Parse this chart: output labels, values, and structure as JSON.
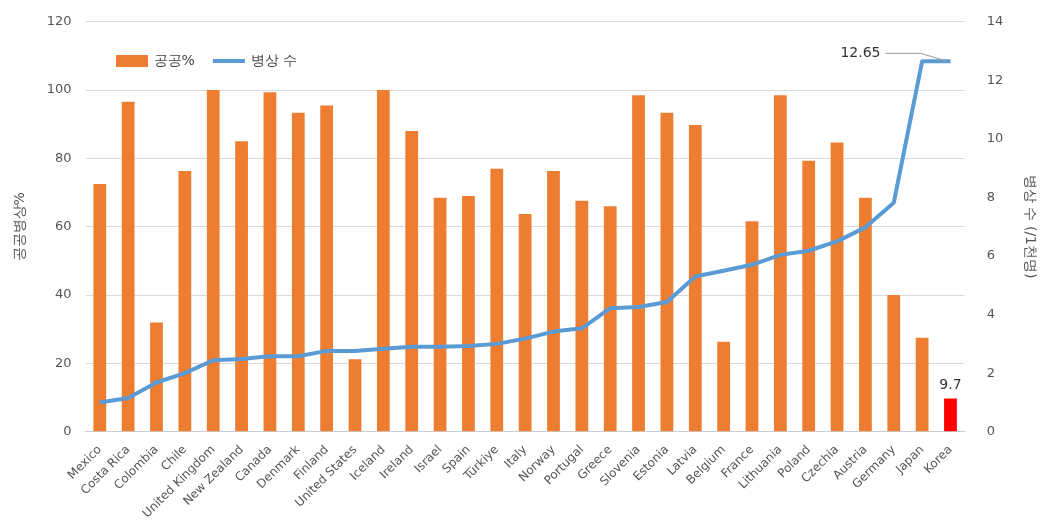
{
  "chart_data": {
    "type": "bar",
    "ylabel": "공공병상%",
    "y2label": "병상 수 (/1천명)",
    "categories": [
      "Mexico",
      "Costa Rica",
      "Colombia",
      "Chile",
      "United Kingdom",
      "New Zealand",
      "Canada",
      "Denmark",
      "Finland",
      "United States",
      "Iceland",
      "Ireland",
      "Israel",
      "Spain",
      "Türkiye",
      "Italy",
      "Norway",
      "Portugal",
      "Greece",
      "Slovenia",
      "Estonia",
      "Latvia",
      "Belgium",
      "France",
      "Lithuania",
      "Poland",
      "Czechia",
      "Austria",
      "Germany",
      "Japan",
      "Korea"
    ],
    "series": [
      {
        "name": "공공%",
        "color": "#ed7d31",
        "colors": [
          "#ed7d31",
          "#ed7d31",
          "#ed7d31",
          "#ed7d31",
          "#ed7d31",
          "#ed7d31",
          "#ed7d31",
          "#ed7d31",
          "#ed7d31",
          "#ed7d31",
          "#ed7d31",
          "#ed7d31",
          "#ed7d31",
          "#ed7d31",
          "#ed7d31",
          "#ed7d31",
          "#ed7d31",
          "#ed7d31",
          "#ed7d31",
          "#ed7d31",
          "#ed7d31",
          "#ed7d31",
          "#ed7d31",
          "#ed7d31",
          "#ed7d31",
          "#ed7d31",
          "#ed7d31",
          "#ed7d31",
          "#ed7d31",
          "#ed7d31",
          "#ff0000"
        ],
        "values": [
          72.5,
          96.6,
          32,
          76.3,
          100,
          85,
          99.4,
          93.4,
          95.5,
          21.2,
          100,
          88,
          68.5,
          69,
          77,
          63.7,
          76.3,
          67.6,
          66,
          98.5,
          93.4,
          89.8,
          26.3,
          61.6,
          98.5,
          79.3,
          84.7,
          68.5,
          40,
          27.5,
          9.7
        ],
        "value_labels": [
          null,
          null,
          null,
          null,
          null,
          null,
          null,
          null,
          null,
          null,
          null,
          null,
          null,
          null,
          null,
          null,
          null,
          null,
          null,
          null,
          null,
          null,
          null,
          null,
          null,
          null,
          null,
          null,
          null,
          null,
          "9.7"
        ]
      },
      {
        "name": "병상 수",
        "type": "line",
        "axis": "y2",
        "color": "#5b9bd5",
        "values": [
          1.0,
          1.15,
          1.68,
          2.0,
          2.44,
          2.48,
          2.58,
          2.58,
          2.76,
          2.76,
          2.83,
          2.9,
          2.9,
          2.93,
          3.0,
          3.18,
          3.42,
          3.53,
          4.22,
          4.26,
          4.43,
          5.3,
          5.5,
          5.7,
          6.04,
          6.18,
          6.5,
          6.98,
          7.82,
          12.65,
          12.65
        ],
        "value_labels": [
          null,
          null,
          null,
          null,
          null,
          null,
          null,
          null,
          null,
          null,
          null,
          null,
          null,
          null,
          null,
          null,
          null,
          null,
          null,
          null,
          null,
          null,
          null,
          null,
          null,
          null,
          null,
          null,
          null,
          null,
          "12.65"
        ]
      }
    ],
    "ylim": [
      0,
      120
    ],
    "yticks": [
      0,
      20,
      40,
      60,
      80,
      100,
      120
    ],
    "y2lim": [
      0,
      14
    ],
    "y2ticks": [
      0,
      2,
      4,
      6,
      8,
      10,
      12,
      14
    ],
    "grid": "y",
    "legend": "top left",
    "marker": "none",
    "line_style": "solid"
  }
}
